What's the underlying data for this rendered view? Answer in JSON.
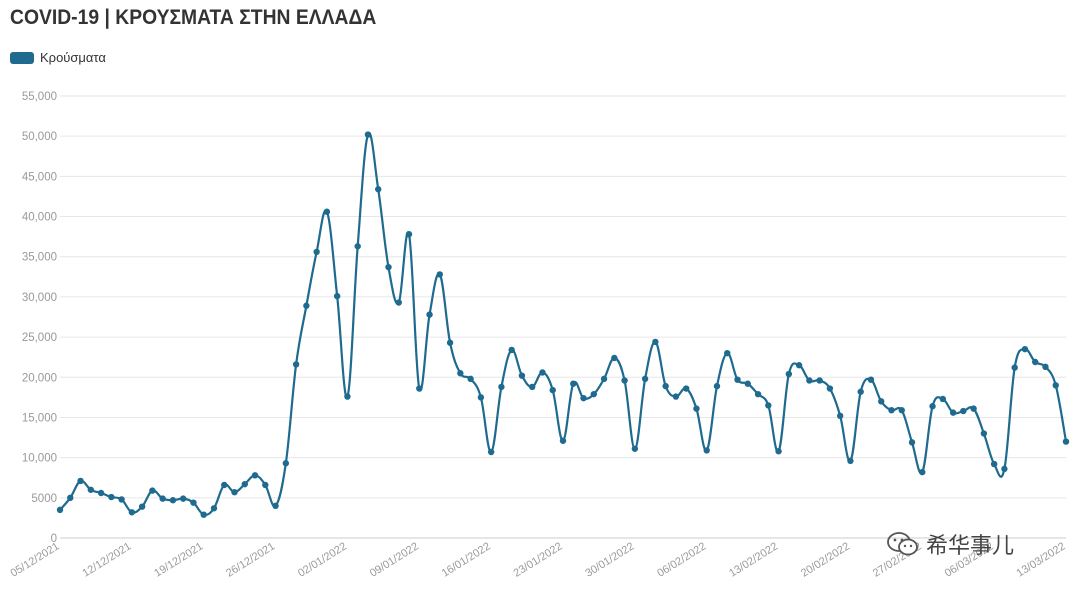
{
  "title": "COVID-19 | ΚΡΟΥΣΜΑΤΑ ΣΤΗΝ ΕΛΛΑΔΑ",
  "watermark": {
    "text": "希华事儿",
    "icon": "wechat-icon"
  },
  "colors": {
    "series": "#1f6a8f",
    "grid": "#e6e6e6",
    "tick": "#999999"
  },
  "chart_data": {
    "type": "line",
    "title": "COVID-19 | ΚΡΟΥΣΜΑΤΑ ΣΤΗΝ ΕΛΛΑΔΑ",
    "xlabel": "",
    "ylabel": "",
    "ylim": [
      0,
      55000
    ],
    "yticks": [
      0,
      5000,
      10000,
      15000,
      20000,
      25000,
      30000,
      35000,
      40000,
      45000,
      50000,
      55000
    ],
    "ytick_labels": [
      "0",
      "5000",
      "10,000",
      "15,000",
      "20,000",
      "25,000",
      "30,000",
      "35,000",
      "40,000",
      "45,000",
      "50,000",
      "55,000"
    ],
    "xtick_labels": [
      "05/12/2021",
      "12/12/2021",
      "19/12/2021",
      "26/12/2021",
      "02/01/2022",
      "09/01/2022",
      "16/01/2022",
      "23/01/2022",
      "30/01/2022",
      "06/02/2022",
      "13/02/2022",
      "20/02/2022",
      "27/02/2022",
      "06/03/2022",
      "13/03/2022"
    ],
    "grid": true,
    "legend_position": "top-left",
    "series": [
      {
        "name": "Κρούσματα",
        "x": [
          "05/12/2021",
          "06/12/2021",
          "07/12/2021",
          "08/12/2021",
          "09/12/2021",
          "10/12/2021",
          "11/12/2021",
          "12/12/2021",
          "13/12/2021",
          "14/12/2021",
          "15/12/2021",
          "16/12/2021",
          "17/12/2021",
          "18/12/2021",
          "19/12/2021",
          "20/12/2021",
          "21/12/2021",
          "22/12/2021",
          "23/12/2021",
          "24/12/2021",
          "25/12/2021",
          "26/12/2021",
          "27/12/2021",
          "28/12/2021",
          "29/12/2021",
          "30/12/2021",
          "31/12/2021",
          "01/01/2022",
          "02/01/2022",
          "03/01/2022",
          "04/01/2022",
          "05/01/2022",
          "06/01/2022",
          "07/01/2022",
          "08/01/2022",
          "09/01/2022",
          "10/01/2022",
          "11/01/2022",
          "12/01/2022",
          "13/01/2022",
          "14/01/2022",
          "15/01/2022",
          "16/01/2022",
          "17/01/2022",
          "18/01/2022",
          "19/01/2022",
          "20/01/2022",
          "21/01/2022",
          "22/01/2022",
          "23/01/2022",
          "24/01/2022",
          "25/01/2022",
          "26/01/2022",
          "27/01/2022",
          "28/01/2022",
          "29/01/2022",
          "30/01/2022",
          "31/01/2022",
          "01/02/2022",
          "02/02/2022",
          "03/02/2022",
          "04/02/2022",
          "05/02/2022",
          "06/02/2022",
          "07/02/2022",
          "08/02/2022",
          "09/02/2022",
          "10/02/2022",
          "11/02/2022",
          "12/02/2022",
          "13/02/2022",
          "14/02/2022",
          "15/02/2022",
          "16/02/2022",
          "17/02/2022",
          "18/02/2022",
          "19/02/2022",
          "20/02/2022",
          "21/02/2022",
          "22/02/2022",
          "23/02/2022",
          "24/02/2022",
          "25/02/2022",
          "26/02/2022",
          "27/02/2022",
          "28/02/2022",
          "01/03/2022",
          "02/03/2022",
          "03/03/2022",
          "04/03/2022",
          "05/03/2022",
          "06/03/2022",
          "07/03/2022",
          "08/03/2022",
          "09/03/2022",
          "10/03/2022",
          "11/03/2022",
          "12/03/2022",
          "13/03/2022"
        ],
        "values": [
          3500,
          5000,
          7100,
          6000,
          5600,
          5100,
          4800,
          3200,
          3900,
          5900,
          4900,
          4700,
          4900,
          4400,
          2900,
          3700,
          6600,
          5700,
          6700,
          7800,
          6600,
          4000,
          9300,
          21600,
          28900,
          35600,
          40600,
          30100,
          17600,
          36300,
          50200,
          43400,
          33700,
          29300,
          37800,
          18600,
          27800,
          32800,
          24300,
          20500,
          19800,
          17500,
          10700,
          18800,
          23400,
          20200,
          18800,
          20600,
          18400,
          12100,
          19200,
          17400,
          17900,
          19800,
          22400,
          19600,
          11100,
          19800,
          24400,
          18900,
          17600,
          18600,
          16100,
          10900,
          18900,
          23000,
          19700,
          19200,
          17900,
          16500,
          10800,
          20400,
          21500,
          19600,
          19600,
          18600,
          15200,
          9600,
          18200,
          19700,
          17000,
          15900,
          15900,
          11900,
          8200,
          16400,
          17300,
          15600,
          15800,
          16100,
          13000,
          9200,
          8600,
          21200,
          23500,
          21900,
          21300,
          19000,
          12000
        ]
      }
    ]
  }
}
